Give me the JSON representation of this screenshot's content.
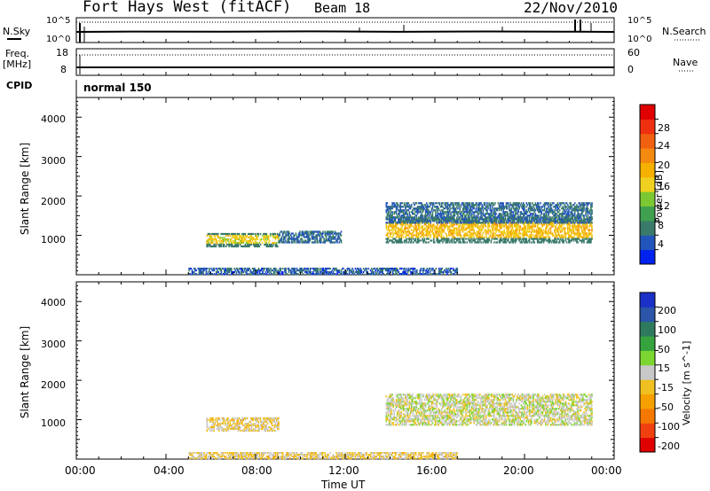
{
  "header": {
    "station": "Fort Hays West (fitACF)",
    "beam": "Beam 18",
    "date": "22/Nov/2010"
  },
  "top_panels": {
    "nsky_label": "N.Sky",
    "nsearch_label": "N.Search",
    "count_high": "10^5",
    "count_low": "10^0",
    "freq_label": "Freq.",
    "freq_unit": "[MHz]",
    "freq_high": "18",
    "freq_low": "8",
    "nave_label": "Nave",
    "nave_high": "60",
    "nave_low": "0",
    "cpid_label": "CPID",
    "cpid_value": "normal 150"
  },
  "axes": {
    "ylabel": "Slant Range [km]",
    "xlabel": "Time UT",
    "x_ticks": [
      "00:00",
      "04:00",
      "08:00",
      "12:00",
      "16:00",
      "20:00",
      "00:00"
    ],
    "y_ticks": [
      "1000",
      "2000",
      "3000",
      "4000"
    ]
  },
  "colorbars": {
    "power": {
      "label": "Power [dB]",
      "ticks": [
        "4",
        "8",
        "12",
        "16",
        "20",
        "24",
        "28"
      ],
      "colors": [
        "#0022ee",
        "#2255bb",
        "#3a7a6a",
        "#3fa050",
        "#7cc832",
        "#f0d020",
        "#f5b000",
        "#f48a10",
        "#f06010",
        "#ee3010",
        "#e00000"
      ]
    },
    "velocity": {
      "label": "Velocity [m s^-1]",
      "ticks": [
        "200",
        "100",
        "50",
        "15",
        "-15",
        "-50",
        "-100",
        "-200"
      ],
      "colors": [
        "#1a30c8",
        "#2a55a8",
        "#2f7a5e",
        "#37a33f",
        "#7cd632",
        "#c8c8c8",
        "#f0c020",
        "#f5a000",
        "#f47800",
        "#f04010",
        "#e00000"
      ]
    }
  },
  "chart_data": [
    {
      "type": "heatmap",
      "name": "power",
      "x_range_hours": [
        0,
        24
      ],
      "y_range_km": [
        0,
        4500
      ],
      "value_range_db": [
        0,
        32
      ],
      "regions": [
        {
          "t0": 5.8,
          "t1": 9.0,
          "r0": 700,
          "r1": 1050,
          "value": 16
        },
        {
          "t0": 9.0,
          "t1": 11.8,
          "r0": 800,
          "r1": 1100,
          "value": 6
        },
        {
          "t0": 13.8,
          "t1": 23.0,
          "r0": 800,
          "r1": 1450,
          "value": 18
        },
        {
          "t0": 13.8,
          "t1": 23.0,
          "r0": 1300,
          "r1": 1800,
          "value": 6
        },
        {
          "t0": 5.0,
          "t1": 17.0,
          "r0": 0,
          "r1": 180,
          "value": 5
        }
      ]
    },
    {
      "type": "heatmap",
      "name": "velocity",
      "x_range_hours": [
        0,
        24
      ],
      "y_range_km": [
        0,
        4500
      ],
      "value_range_ms": [
        -250,
        250
      ],
      "regions": [
        {
          "t0": 5.8,
          "t1": 9.0,
          "r0": 700,
          "r1": 1050,
          "value": -30
        },
        {
          "t0": 13.8,
          "t1": 23.0,
          "r0": 850,
          "r1": 1650,
          "value": 0
        },
        {
          "t0": 5.0,
          "t1": 17.0,
          "r0": 0,
          "r1": 180,
          "value": -30
        }
      ]
    }
  ]
}
